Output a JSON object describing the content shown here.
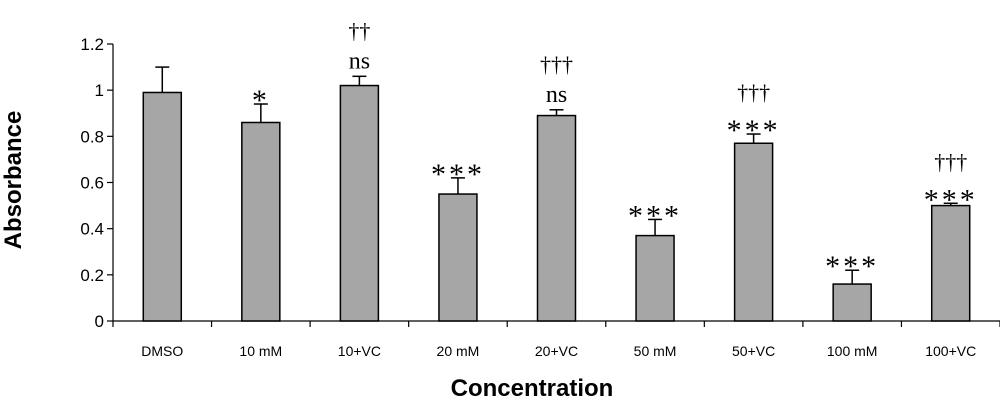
{
  "chart_data": {
    "type": "bar",
    "title": "",
    "xlabel": "Concentration",
    "ylabel": "Absorbance",
    "ylim": [
      0,
      1.2
    ],
    "yticks": [
      "0",
      "0.2",
      "0.4",
      "0.6",
      "0.8",
      "1",
      "1.2"
    ],
    "categories": [
      "DMSO",
      "10 mM",
      "10+VC",
      "20 mM",
      "20+VC",
      "50 mM",
      "50+VC",
      "100 mM",
      "100+VC"
    ],
    "values": [
      0.99,
      0.86,
      1.02,
      0.55,
      0.89,
      0.37,
      0.77,
      0.16,
      0.5
    ],
    "errors": [
      0.11,
      0.08,
      0.04,
      0.07,
      0.025,
      0.07,
      0.04,
      0.06,
      0.01
    ],
    "annotations": [
      [],
      [
        "*"
      ],
      [
        "††",
        "ns"
      ],
      [
        "***"
      ],
      [
        "†††",
        "ns"
      ],
      [
        "***"
      ],
      [
        "†††",
        "***"
      ],
      [
        "***"
      ],
      [
        "†††",
        "***"
      ]
    ],
    "bar_color": "#a6a6a6",
    "grid": false,
    "legend": "none"
  }
}
